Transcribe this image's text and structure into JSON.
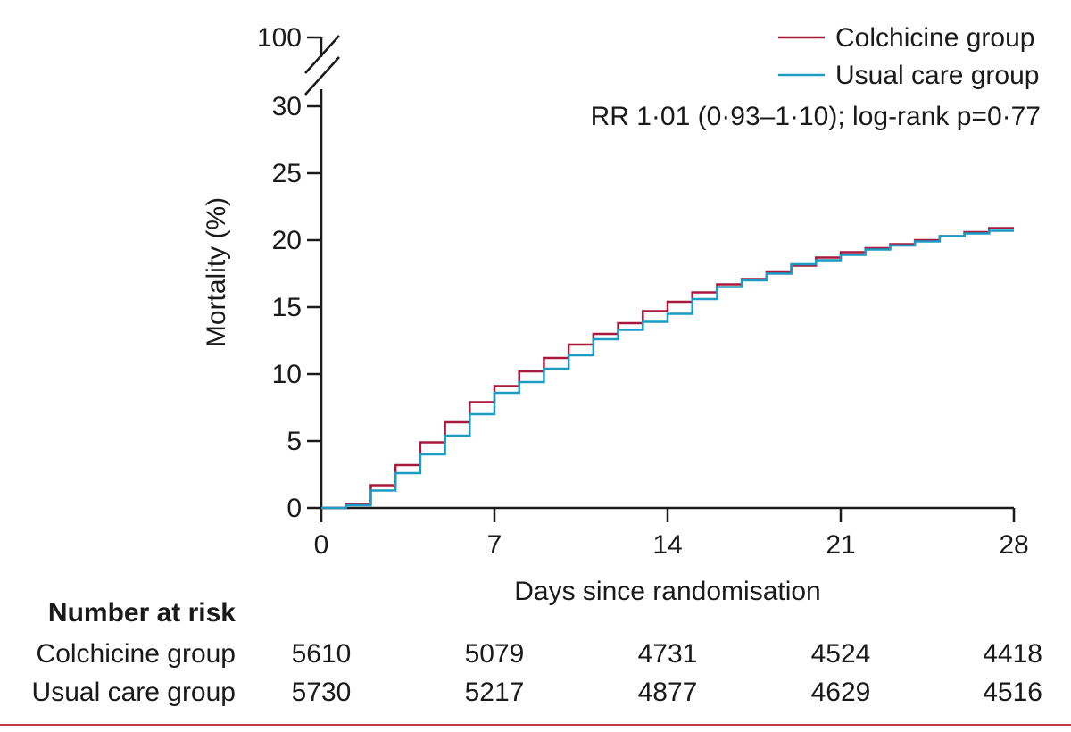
{
  "colors": {
    "colchicine": "#a8193c",
    "usual_care": "#1a9cc4",
    "axis": "#1a1a1a",
    "bottom_rule": "#c0394b"
  },
  "chart_data": {
    "type": "line",
    "step": true,
    "ylabel": "Mortality (%)",
    "xlabel": "Days since randomisation",
    "x_ticks": [
      0,
      7,
      14,
      21,
      28
    ],
    "y_ticks": [
      0,
      5,
      10,
      15,
      20,
      25,
      30
    ],
    "y_break_label": "100",
    "xlim": [
      0,
      28
    ],
    "ylim": [
      0,
      30
    ],
    "annotation": "RR 1·01 (0·93–1·10); log-rank p=0·77",
    "legend_position": "top-right",
    "series": [
      {
        "name": "Colchicine group",
        "color_key": "colchicine",
        "x": [
          0,
          1,
          2,
          3,
          4,
          5,
          6,
          7,
          8,
          9,
          10,
          11,
          12,
          13,
          14,
          15,
          16,
          17,
          18,
          19,
          20,
          21,
          22,
          23,
          24,
          25,
          26,
          27,
          28
        ],
        "y": [
          0,
          0.3,
          1.7,
          3.2,
          4.9,
          6.4,
          7.9,
          9.1,
          10.2,
          11.2,
          12.2,
          13.0,
          13.8,
          14.7,
          15.4,
          16.1,
          16.7,
          17.1,
          17.6,
          18.1,
          18.7,
          19.1,
          19.4,
          19.7,
          20.0,
          20.3,
          20.6,
          20.9,
          20.9
        ]
      },
      {
        "name": "Usual care group",
        "color_key": "usual_care",
        "x": [
          0,
          1,
          2,
          3,
          4,
          5,
          6,
          7,
          8,
          9,
          10,
          11,
          12,
          13,
          14,
          15,
          16,
          17,
          18,
          19,
          20,
          21,
          22,
          23,
          24,
          25,
          26,
          27,
          28
        ],
        "y": [
          0,
          0.2,
          1.3,
          2.6,
          4.0,
          5.4,
          7.0,
          8.6,
          9.4,
          10.4,
          11.4,
          12.6,
          13.3,
          13.9,
          14.5,
          15.6,
          16.5,
          17.0,
          17.5,
          18.2,
          18.5,
          18.9,
          19.3,
          19.6,
          19.9,
          20.3,
          20.5,
          20.7,
          20.7
        ]
      }
    ]
  },
  "risk_table": {
    "title": "Number at risk",
    "rows": [
      {
        "label": "Colchicine group",
        "values": [
          "5610",
          "5079",
          "4731",
          "4524",
          "4418"
        ]
      },
      {
        "label": "Usual care group",
        "values": [
          "5730",
          "5217",
          "4877",
          "4629",
          "4516"
        ]
      }
    ]
  }
}
